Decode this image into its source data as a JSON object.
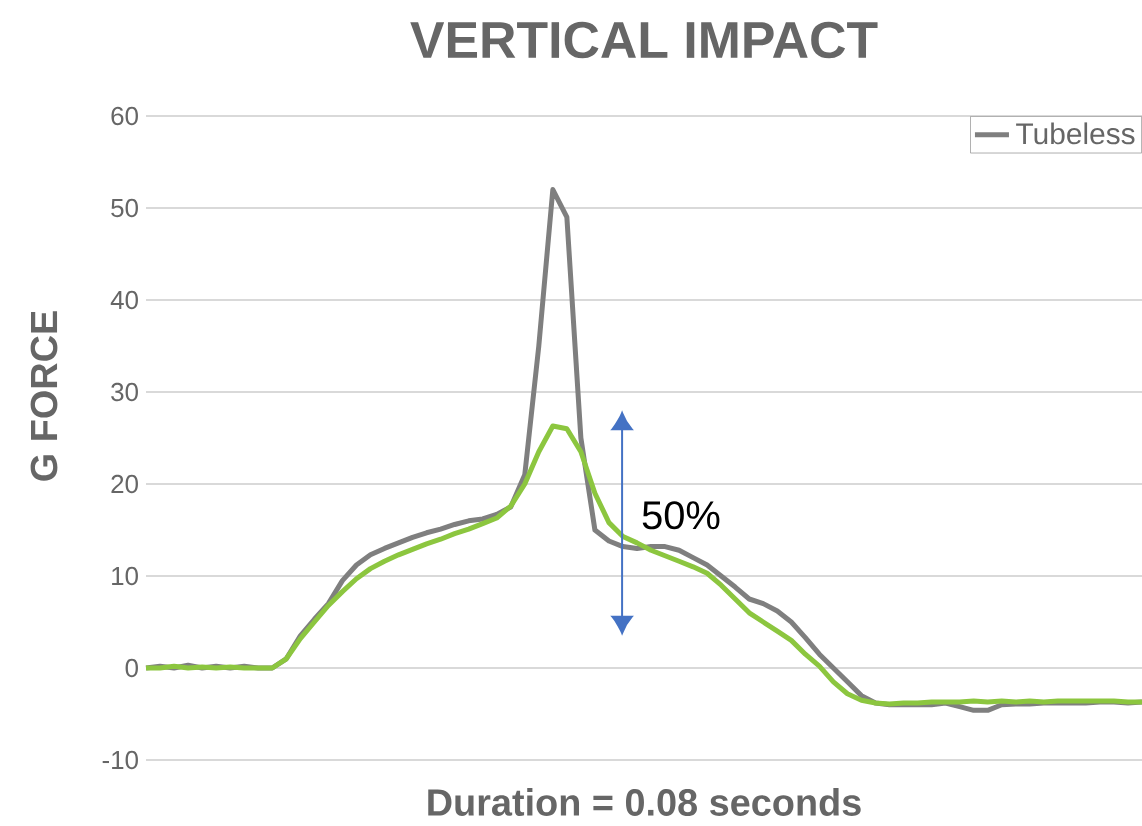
{
  "chart_data": {
    "type": "line",
    "title": "VERTICAL IMPACT",
    "xlabel": "Duration = 0.08 seconds",
    "ylabel": "G FORCE",
    "annotations": [
      "50%"
    ],
    "categories": [
      null,
      null,
      null,
      null,
      null,
      null,
      null,
      null,
      null,
      null,
      null,
      null,
      null,
      null,
      null,
      null,
      null,
      null,
      null,
      null,
      null,
      null,
      null,
      null,
      null,
      null,
      null,
      null,
      null,
      null,
      null,
      null,
      null,
      null,
      null,
      null,
      null,
      null,
      null,
      null,
      null,
      null,
      null,
      null,
      null,
      null,
      null,
      null,
      null,
      null,
      null,
      null,
      null,
      null,
      null,
      null,
      null,
      null,
      null,
      null,
      null,
      null,
      null,
      null,
      null,
      null,
      null,
      null,
      null,
      null,
      null,
      null
    ],
    "series": [
      {
        "name": "Tubeless",
        "color": "#7f7f7f",
        "values": [
          0,
          0.2,
          0,
          0.3,
          0,
          0.2,
          0,
          0.2,
          0,
          0,
          1,
          3.5,
          5.3,
          7,
          9.5,
          11.2,
          12.3,
          13,
          13.6,
          14.2,
          14.7,
          15.1,
          15.6,
          16,
          16.2,
          16.7,
          17.5,
          21,
          35,
          52,
          49,
          25,
          15,
          13.8,
          13.2,
          13,
          13.2,
          13.2,
          12.8,
          12,
          11.2,
          10,
          8.8,
          7.5,
          7,
          6.2,
          5,
          3.3,
          1.5,
          0,
          -1.5,
          -3,
          -3.8,
          -4,
          -4,
          -4,
          -4,
          -3.8,
          -4.2,
          -4.6,
          -4.6,
          -4,
          -3.9,
          -3.9,
          -3.8,
          -3.8,
          -3.8,
          -3.8,
          -3.7,
          -3.7,
          -3.8,
          -3.7
        ]
      },
      {
        "color": "#8cc63f",
        "values": [
          0,
          0,
          0.2,
          0,
          0.1,
          0,
          0.1,
          0,
          0,
          0,
          1,
          3.2,
          5,
          6.8,
          8.3,
          9.7,
          10.8,
          11.6,
          12.3,
          12.9,
          13.5,
          14,
          14.6,
          15.1,
          15.7,
          16.3,
          17.6,
          20,
          23.5,
          26.3,
          26,
          23.5,
          19,
          15.8,
          14.3,
          13.6,
          12.8,
          12.2,
          11.6,
          11,
          10.3,
          9,
          7.5,
          6,
          5,
          4,
          3,
          1.5,
          0.2,
          -1.5,
          -2.8,
          -3.5,
          -3.8,
          -3.9,
          -3.8,
          -3.8,
          -3.7,
          -3.7,
          -3.7,
          -3.6,
          -3.7,
          -3.6,
          -3.7,
          -3.6,
          -3.7,
          -3.6,
          -3.6,
          -3.6,
          -3.6,
          -3.6,
          -3.7,
          -3.7
        ]
      }
    ],
    "ylim": [
      -10,
      60
    ],
    "yticks": [
      -10,
      0,
      10,
      20,
      30,
      40,
      50,
      60
    ],
    "grid": "y",
    "legend": "top right",
    "marker": "none",
    "line_style": "solid"
  }
}
